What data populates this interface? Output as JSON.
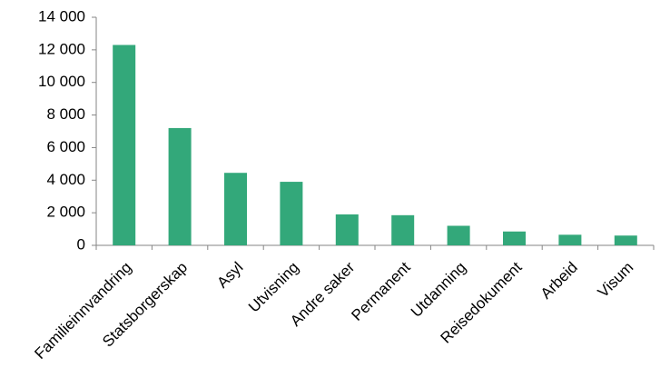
{
  "chart_data": {
    "type": "bar",
    "categories": [
      "Familieinnvandring",
      "Statsborgerskap",
      "Asyl",
      "Utvisning",
      "Andre saker",
      "Permanent",
      "Utdanning",
      "Reisedokument",
      "Arbeid",
      "Visum"
    ],
    "values": [
      12300,
      7200,
      4450,
      3900,
      1900,
      1850,
      1200,
      850,
      650,
      600
    ],
    "color": "#33a87a",
    "ylim": [
      0,
      14000
    ],
    "yticks": [
      0,
      {
        "value": 2000,
        "label": "2 000"
      },
      {
        "value": 4000,
        "label": "4 000"
      },
      {
        "value": 6000,
        "label": "6 000"
      },
      {
        "value": 8000,
        "label": "8 000"
      },
      {
        "value": 10000,
        "label": "10 000"
      },
      {
        "value": 12000,
        "label": "12 000"
      },
      {
        "value": 14000,
        "label": "14 000"
      }
    ],
    "grid": false
  }
}
